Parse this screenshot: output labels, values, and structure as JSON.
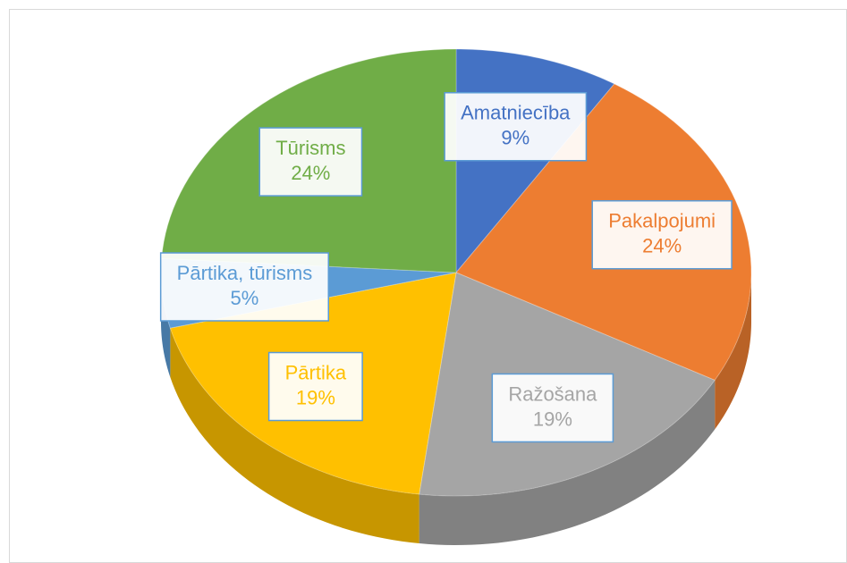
{
  "chart_data": {
    "type": "pie",
    "categories": [
      "Amatniecība",
      "Pakalpojumi",
      "Ražošana",
      "Pārtika",
      "Pārtika, tūrisms",
      "Tūrisms"
    ],
    "values": [
      9,
      24,
      19,
      19,
      5,
      24
    ],
    "value_labels": [
      "9%",
      "24%",
      "19%",
      "19%",
      "5%",
      "24%"
    ],
    "colors": [
      "#4472c4",
      "#ed7d31",
      "#a5a5a5",
      "#ffc000",
      "#5b9bd5",
      "#70ad47"
    ]
  }
}
